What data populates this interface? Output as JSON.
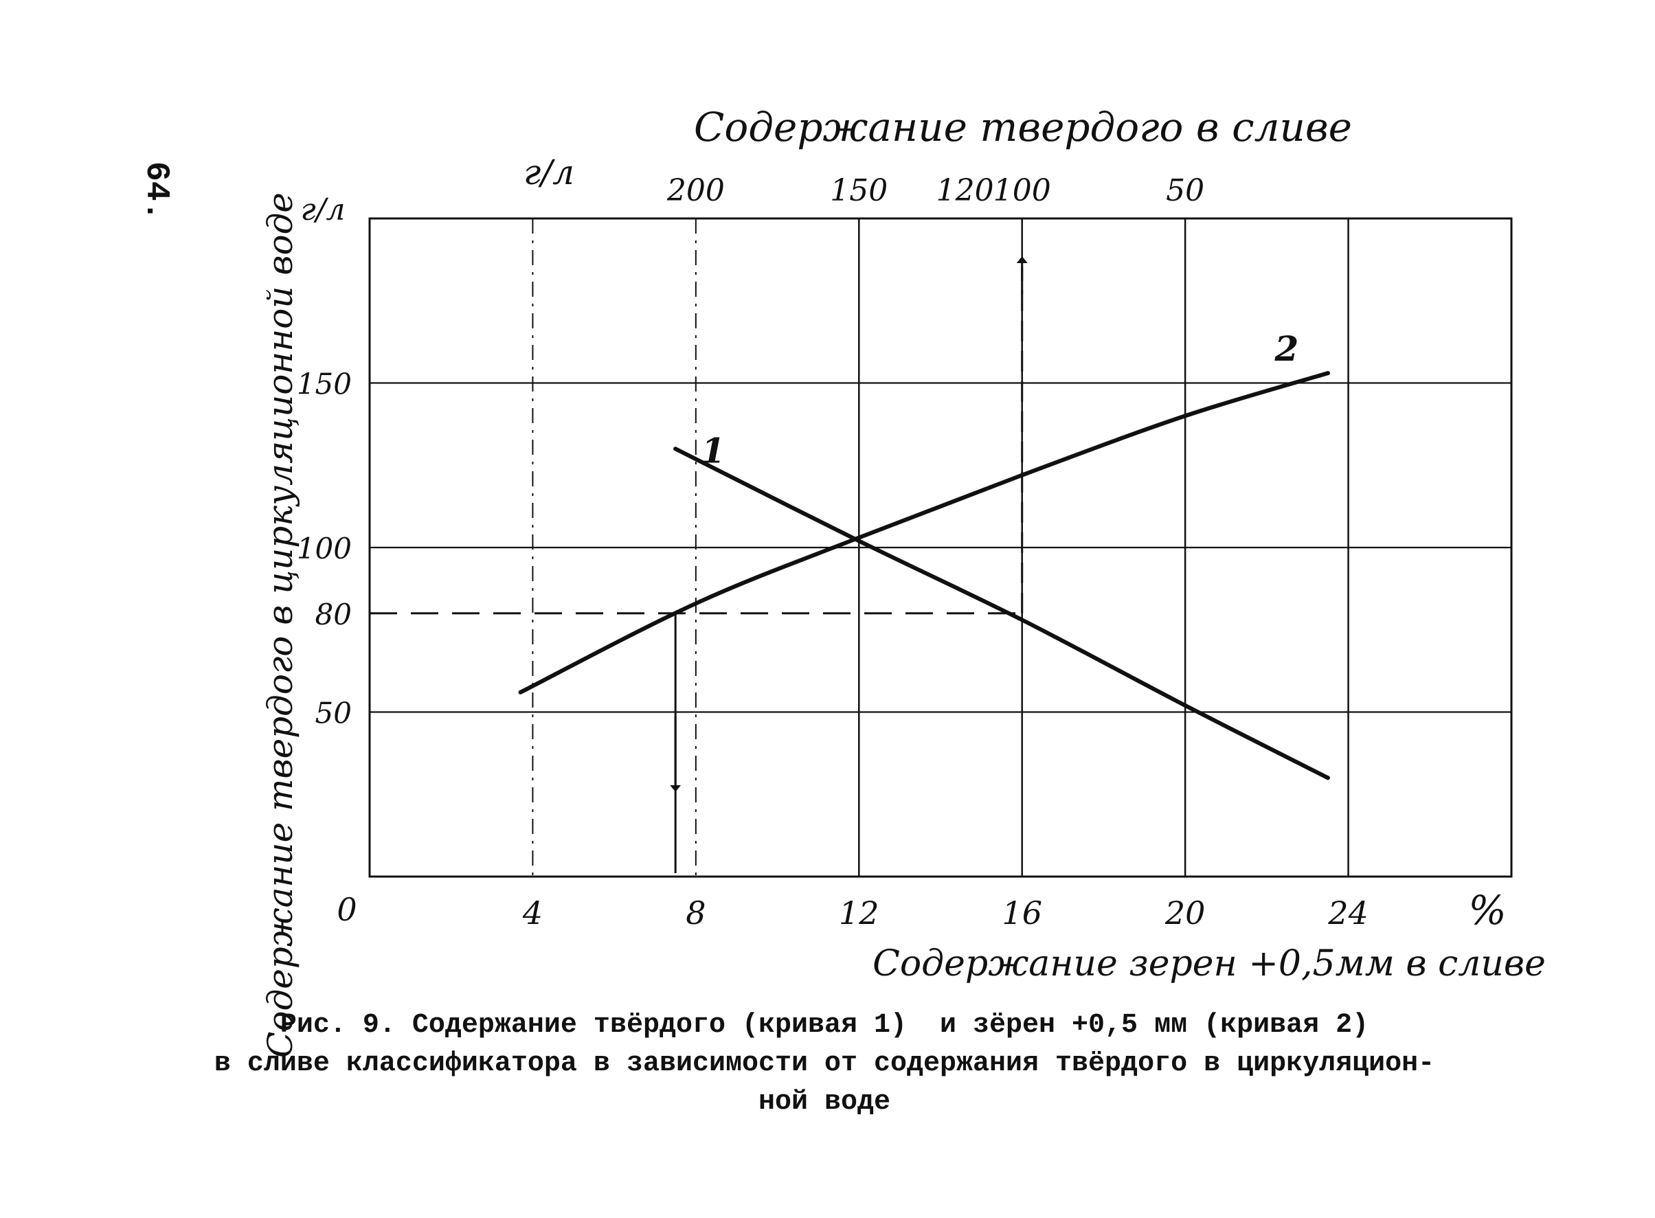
{
  "page_number": "64.",
  "caption": {
    "line1": "Рис. 9. Содержание твёрдого (кривая 1)  и зёрен +0,5 мм (кривая 2)",
    "line2": "в сливе классификатора в зависимости от содержания твёрдого в циркуляцион-",
    "line3": "ной воде"
  },
  "chart_data": {
    "type": "line",
    "top_axis": {
      "label": "Содержание твердого в сливе",
      "unit": "г/л",
      "ticks": [
        "200",
        "150",
        "120",
        "100",
        "50"
      ]
    },
    "x_axis": {
      "label": "Содержание зерен +0,5мм  в сливе",
      "unit": "%",
      "origin_label": "0",
      "ticks": [
        "4",
        "8",
        "12",
        "16",
        "20",
        "24"
      ],
      "range": [
        0,
        28
      ]
    },
    "y_axis": {
      "label": "Содержание твердого в циркуляционной воде",
      "unit": "г/л",
      "ticks": [
        "50",
        "80",
        "100",
        "150"
      ],
      "range": [
        0,
        200
      ]
    },
    "series": [
      {
        "name": "1",
        "points": [
          [
            7.5,
            130
          ],
          [
            12,
            102
          ],
          [
            16,
            78
          ],
          [
            20,
            52
          ],
          [
            23.5,
            30
          ]
        ]
      },
      {
        "name": "2",
        "points": [
          [
            3.7,
            56
          ],
          [
            8,
            83
          ],
          [
            12,
            103
          ],
          [
            16,
            122
          ],
          [
            20,
            140
          ],
          [
            23.5,
            153
          ]
        ]
      }
    ],
    "guides": {
      "horizontal_dashed_y": 80,
      "down_arrow_x": 7.5,
      "up_arrow_x": 16
    },
    "grid": true
  }
}
